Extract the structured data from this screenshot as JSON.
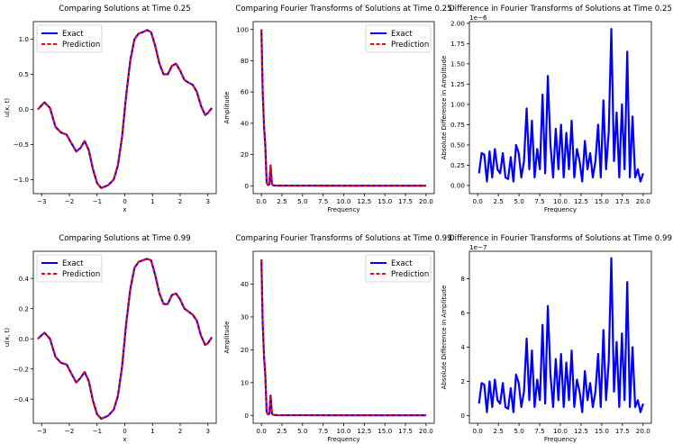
{
  "chart_data": [
    {
      "type": "line",
      "title": "Comparing Solutions at Time 0.25",
      "xlabel": "x",
      "ylabel": "u(x, t)",
      "xlim": [
        -3.3,
        3.3
      ],
      "ylim": [
        -1.2,
        1.25
      ],
      "xticks": [
        -3,
        -2,
        -1,
        0,
        1,
        2,
        3
      ],
      "xtick_labels": [
        "−3",
        "−2",
        "−1",
        "0",
        "1",
        "2",
        "3"
      ],
      "yticks": [
        -1.0,
        -0.5,
        0.0,
        0.5,
        1.0
      ],
      "ytick_labels": [
        "−1.0",
        "−0.5",
        "0.0",
        "0.5",
        "1.0"
      ],
      "legend": [
        "Exact",
        "Prediction"
      ],
      "legend_position": "upper-left",
      "x": [
        -3.14,
        -2.9,
        -2.7,
        -2.5,
        -2.3,
        -2.1,
        -1.9,
        -1.75,
        -1.6,
        -1.45,
        -1.3,
        -1.15,
        -1.0,
        -0.85,
        -0.6,
        -0.4,
        -0.25,
        -0.1,
        0.05,
        0.2,
        0.35,
        0.5,
        0.65,
        0.8,
        0.95,
        1.1,
        1.25,
        1.4,
        1.55,
        1.7,
        1.85,
        2.0,
        2.15,
        2.3,
        2.45,
        2.6,
        2.75,
        2.9,
        3.0,
        3.14
      ],
      "series": [
        {
          "name": "Exact",
          "values": [
            0.0,
            0.1,
            0.02,
            -0.25,
            -0.33,
            -0.36,
            -0.5,
            -0.6,
            -0.55,
            -0.45,
            -0.58,
            -0.85,
            -1.05,
            -1.12,
            -1.08,
            -1.0,
            -0.8,
            -0.4,
            0.2,
            0.7,
            1.0,
            1.08,
            1.1,
            1.13,
            1.1,
            0.9,
            0.65,
            0.5,
            0.5,
            0.62,
            0.65,
            0.55,
            0.42,
            0.38,
            0.35,
            0.25,
            0.05,
            -0.08,
            -0.05,
            0.02
          ]
        },
        {
          "name": "Prediction",
          "values": [
            0.0,
            0.1,
            0.02,
            -0.25,
            -0.33,
            -0.36,
            -0.5,
            -0.6,
            -0.55,
            -0.45,
            -0.58,
            -0.85,
            -1.05,
            -1.12,
            -1.08,
            -1.0,
            -0.8,
            -0.4,
            0.2,
            0.7,
            1.0,
            1.08,
            1.1,
            1.13,
            1.1,
            0.9,
            0.65,
            0.5,
            0.5,
            0.62,
            0.65,
            0.55,
            0.42,
            0.38,
            0.35,
            0.25,
            0.05,
            -0.08,
            -0.05,
            0.02
          ]
        }
      ]
    },
    {
      "type": "line",
      "title": "Comparing Fourier Transforms of Solutions at Time 0.25",
      "xlabel": "Frequency",
      "ylabel": "Amplitude",
      "xlim": [
        -1.0,
        21.0
      ],
      "ylim": [
        -5,
        105
      ],
      "xticks": [
        0,
        2.5,
        5,
        7.5,
        10,
        12.5,
        15,
        17.5,
        20
      ],
      "xtick_labels": [
        "0.0",
        "2.5",
        "5.0",
        "7.5",
        "10.0",
        "12.5",
        "15.0",
        "17.5",
        "20.0"
      ],
      "yticks": [
        0,
        20,
        40,
        60,
        80,
        100
      ],
      "ytick_labels": [
        "0",
        "20",
        "40",
        "60",
        "80",
        "100"
      ],
      "legend": [
        "Exact",
        "Prediction"
      ],
      "legend_position": "upper-right",
      "x": [
        0.0,
        0.16,
        0.32,
        0.48,
        0.64,
        0.8,
        0.96,
        1.12,
        1.28,
        1.44,
        1.6,
        1.76,
        2.0,
        3.0,
        5.0,
        10.0,
        15.0,
        20.0
      ],
      "series": [
        {
          "name": "Exact",
          "values": [
            100,
            60,
            38,
            25,
            2,
            0.5,
            1,
            13,
            1,
            0.3,
            0.2,
            0.2,
            0.1,
            0.1,
            0.1,
            0.05,
            0.05,
            0.05
          ]
        },
        {
          "name": "Prediction",
          "values": [
            100,
            60,
            38,
            25,
            2,
            0.5,
            1,
            13,
            1,
            0.3,
            0.2,
            0.2,
            0.1,
            0.1,
            0.1,
            0.05,
            0.05,
            0.05
          ]
        }
      ]
    },
    {
      "type": "line",
      "title": "Difference in Fourier Transforms of Solutions at Time 0.25",
      "xlabel": "Frequency",
      "ylabel": "Absolute Difference in Amplitude",
      "offset_label": "1e−6",
      "xlim": [
        -1.0,
        21.0
      ],
      "ylim": [
        -0.1,
        2.02
      ],
      "xticks": [
        0,
        2.5,
        5,
        7.5,
        10,
        12.5,
        15,
        17.5,
        20
      ],
      "xtick_labels": [
        "0.0",
        "2.5",
        "5.0",
        "7.5",
        "10.0",
        "12.5",
        "15.0",
        "17.5",
        "20.0"
      ],
      "yticks": [
        0,
        0.25,
        0.5,
        0.75,
        1.0,
        1.25,
        1.5,
        1.75,
        2.0
      ],
      "ytick_labels": [
        "0.00",
        "0.25",
        "0.50",
        "0.75",
        "1.00",
        "1.25",
        "1.50",
        "1.75",
        "2.00"
      ],
      "x": [
        0.16,
        0.48,
        0.8,
        1.12,
        1.44,
        1.76,
        2.08,
        2.4,
        2.72,
        3.04,
        3.36,
        3.68,
        4.0,
        4.32,
        4.64,
        4.96,
        5.28,
        5.6,
        5.92,
        6.24,
        6.56,
        6.88,
        7.2,
        7.52,
        7.84,
        8.16,
        8.48,
        8.8,
        9.12,
        9.44,
        9.76,
        10.08,
        10.4,
        10.72,
        11.04,
        11.36,
        11.68,
        12.0,
        12.32,
        12.64,
        12.96,
        13.28,
        13.6,
        13.92,
        14.24,
        14.56,
        14.88,
        15.2,
        15.52,
        15.84,
        16.16,
        16.48,
        16.8,
        17.12,
        17.44,
        17.76,
        18.08,
        18.4,
        18.72,
        19.04,
        19.36,
        19.68,
        20.0
      ],
      "series": [
        {
          "name": "Difference",
          "values": [
            0.15,
            0.4,
            0.38,
            0.05,
            0.42,
            0.1,
            0.45,
            0.2,
            0.15,
            0.4,
            0.1,
            0.08,
            0.35,
            0.05,
            0.5,
            0.4,
            0.1,
            0.3,
            0.95,
            0.2,
            0.8,
            0.1,
            0.45,
            0.2,
            1.12,
            0.15,
            1.35,
            0.5,
            0.1,
            0.7,
            0.2,
            0.75,
            0.1,
            0.65,
            0.2,
            0.8,
            0.1,
            0.45,
            0.3,
            0.05,
            0.55,
            0.2,
            0.4,
            0.1,
            0.3,
            0.75,
            0.1,
            1.05,
            0.2,
            0.65,
            1.93,
            0.3,
            0.9,
            0.1,
            1.0,
            0.2,
            1.65,
            0.1,
            0.85,
            0.1,
            0.2,
            0.05,
            0.15
          ]
        }
      ]
    },
    {
      "type": "line",
      "title": "Comparing Solutions at Time 0.99",
      "xlabel": "x",
      "ylabel": "u(x, t)",
      "xlim": [
        -3.3,
        3.3
      ],
      "ylim": [
        -0.56,
        0.58
      ],
      "xticks": [
        -3,
        -2,
        -1,
        0,
        1,
        2,
        3
      ],
      "xtick_labels": [
        "−3",
        "−2",
        "−1",
        "0",
        "1",
        "2",
        "3"
      ],
      "yticks": [
        -0.4,
        -0.2,
        0.0,
        0.2,
        0.4
      ],
      "ytick_labels": [
        "−0.4",
        "−0.2",
        "0.0",
        "0.2",
        "0.4"
      ],
      "legend": [
        "Exact",
        "Prediction"
      ],
      "legend_position": "upper-left",
      "x": [
        -3.14,
        -2.9,
        -2.7,
        -2.5,
        -2.3,
        -2.1,
        -1.9,
        -1.75,
        -1.6,
        -1.45,
        -1.3,
        -1.15,
        -1.0,
        -0.85,
        -0.6,
        -0.4,
        -0.25,
        -0.1,
        0.05,
        0.2,
        0.35,
        0.5,
        0.65,
        0.8,
        0.95,
        1.1,
        1.25,
        1.4,
        1.55,
        1.7,
        1.85,
        2.0,
        2.15,
        2.3,
        2.45,
        2.6,
        2.75,
        2.9,
        3.0,
        3.14
      ],
      "series": [
        {
          "name": "Exact",
          "values": [
            0.0,
            0.04,
            0.0,
            -0.12,
            -0.16,
            -0.17,
            -0.24,
            -0.29,
            -0.26,
            -0.22,
            -0.28,
            -0.41,
            -0.5,
            -0.53,
            -0.51,
            -0.47,
            -0.38,
            -0.19,
            0.1,
            0.33,
            0.47,
            0.51,
            0.52,
            0.53,
            0.52,
            0.42,
            0.3,
            0.23,
            0.23,
            0.29,
            0.3,
            0.26,
            0.2,
            0.18,
            0.16,
            0.12,
            0.02,
            -0.04,
            -0.03,
            0.01
          ]
        },
        {
          "name": "Prediction",
          "values": [
            0.0,
            0.04,
            0.0,
            -0.12,
            -0.16,
            -0.17,
            -0.24,
            -0.29,
            -0.26,
            -0.22,
            -0.28,
            -0.41,
            -0.5,
            -0.53,
            -0.51,
            -0.47,
            -0.38,
            -0.19,
            0.1,
            0.33,
            0.47,
            0.51,
            0.52,
            0.53,
            0.52,
            0.42,
            0.3,
            0.23,
            0.23,
            0.29,
            0.3,
            0.26,
            0.2,
            0.18,
            0.16,
            0.12,
            0.02,
            -0.04,
            -0.03,
            0.01
          ]
        }
      ]
    },
    {
      "type": "line",
      "title": "Comparing Fourier Transforms of Solutions at Time 0.99",
      "xlabel": "Frequency",
      "ylabel": "Amplitude",
      "xlim": [
        -1.0,
        21.0
      ],
      "ylim": [
        -2.4,
        50
      ],
      "xticks": [
        0,
        2.5,
        5,
        7.5,
        10,
        12.5,
        15,
        17.5,
        20
      ],
      "xtick_labels": [
        "0.0",
        "2.5",
        "5.0",
        "7.5",
        "10.0",
        "12.5",
        "15.0",
        "17.5",
        "20.0"
      ],
      "yticks": [
        0,
        10,
        20,
        30,
        40
      ],
      "ytick_labels": [
        "0",
        "10",
        "20",
        "30",
        "40"
      ],
      "legend": [
        "Exact",
        "Prediction"
      ],
      "legend_position": "upper-right",
      "x": [
        0.0,
        0.16,
        0.32,
        0.48,
        0.64,
        0.8,
        0.96,
        1.12,
        1.28,
        1.44,
        1.6,
        1.76,
        2.0,
        3.0,
        5.0,
        10.0,
        15.0,
        20.0
      ],
      "series": [
        {
          "name": "Exact",
          "values": [
            47.5,
            28,
            18,
            12,
            1,
            0.3,
            0.5,
            6,
            0.5,
            0.2,
            0.1,
            0.1,
            0.05,
            0.05,
            0.05,
            0.03,
            0.03,
            0.03
          ]
        },
        {
          "name": "Prediction",
          "values": [
            47.5,
            28,
            18,
            12,
            1,
            0.3,
            0.5,
            6,
            0.5,
            0.2,
            0.1,
            0.1,
            0.05,
            0.05,
            0.05,
            0.03,
            0.03,
            0.03
          ]
        }
      ]
    },
    {
      "type": "line",
      "title": "Difference in Fourier Transforms of Solutions at Time 0.99",
      "xlabel": "Frequency",
      "ylabel": "Absolute Difference in Amplitude",
      "offset_label": "1e−7",
      "xlim": [
        -1.0,
        21.0
      ],
      "ylim": [
        -0.45,
        9.6
      ],
      "xticks": [
        0,
        2.5,
        5,
        7.5,
        10,
        12.5,
        15,
        17.5,
        20
      ],
      "xtick_labels": [
        "0.0",
        "2.5",
        "5.0",
        "7.5",
        "10.0",
        "12.5",
        "15.0",
        "17.5",
        "20.0"
      ],
      "yticks": [
        0,
        2,
        4,
        6,
        8
      ],
      "ytick_labels": [
        "0",
        "2",
        "4",
        "6",
        "8"
      ],
      "x": [
        0.16,
        0.48,
        0.8,
        1.12,
        1.44,
        1.76,
        2.08,
        2.4,
        2.72,
        3.04,
        3.36,
        3.68,
        4.0,
        4.32,
        4.64,
        4.96,
        5.28,
        5.6,
        5.92,
        6.24,
        6.56,
        6.88,
        7.2,
        7.52,
        7.84,
        8.16,
        8.48,
        8.8,
        9.12,
        9.44,
        9.76,
        10.08,
        10.4,
        10.72,
        11.04,
        11.36,
        11.68,
        12.0,
        12.32,
        12.64,
        12.96,
        13.28,
        13.6,
        13.92,
        14.24,
        14.56,
        14.88,
        15.2,
        15.52,
        15.84,
        16.16,
        16.48,
        16.8,
        17.12,
        17.44,
        17.76,
        18.08,
        18.4,
        18.72,
        19.04,
        19.36,
        19.68,
        20.0
      ],
      "series": [
        {
          "name": "Difference",
          "values": [
            0.7,
            1.9,
            1.8,
            0.2,
            2.0,
            0.5,
            2.1,
            0.9,
            0.7,
            1.9,
            0.5,
            0.4,
            1.6,
            0.2,
            2.4,
            1.9,
            0.5,
            1.4,
            4.5,
            0.9,
            3.8,
            0.5,
            2.1,
            0.9,
            5.3,
            0.7,
            6.4,
            2.4,
            0.5,
            3.3,
            0.9,
            3.6,
            0.5,
            3.1,
            0.9,
            3.8,
            0.5,
            2.1,
            1.4,
            0.2,
            2.6,
            0.9,
            1.9,
            0.5,
            1.4,
            3.6,
            0.5,
            5.0,
            0.9,
            3.1,
            9.2,
            1.4,
            4.3,
            0.5,
            4.8,
            0.9,
            7.8,
            0.5,
            4.0,
            0.5,
            0.9,
            0.2,
            0.7
          ]
        }
      ]
    }
  ]
}
